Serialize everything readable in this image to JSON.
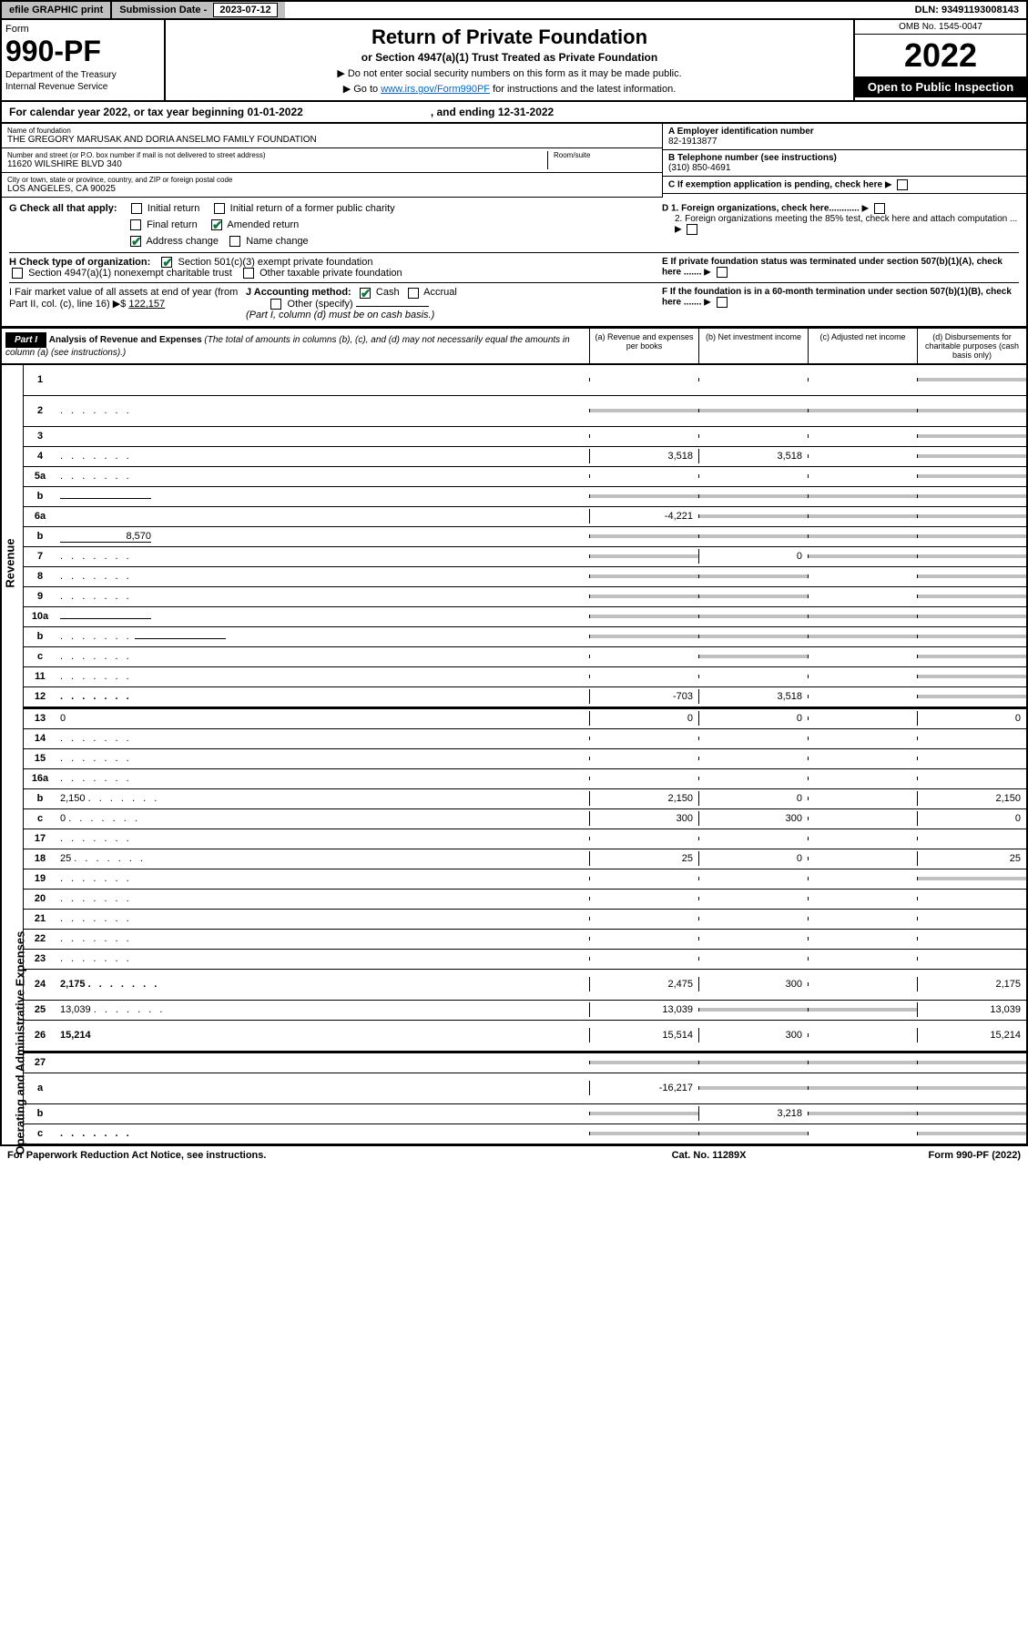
{
  "top": {
    "efile": "efile GRAPHIC print",
    "sub_label": "Submission Date -",
    "sub_date": "2023-07-12",
    "dln": "DLN: 93491193008143"
  },
  "header": {
    "form_label": "Form",
    "form_num": "990-PF",
    "dept1": "Department of the Treasury",
    "dept2": "Internal Revenue Service",
    "title": "Return of Private Foundation",
    "subtitle": "or Section 4947(a)(1) Trust Treated as Private Foundation",
    "note1": "▶ Do not enter social security numbers on this form as it may be made public.",
    "note2_pre": "▶ Go to ",
    "note2_link": "www.irs.gov/Form990PF",
    "note2_post": " for instructions and the latest information.",
    "omb": "OMB No. 1545-0047",
    "year": "2022",
    "open": "Open to Public Inspection"
  },
  "cal": {
    "text1": "For calendar year 2022, or tax year beginning 01-01-2022",
    "text2": ", and ending 12-31-2022"
  },
  "info": {
    "name_label": "Name of foundation",
    "name": "THE GREGORY MARUSAK AND DORIA ANSELMO FAMILY FOUNDATION",
    "addr_label": "Number and street (or P.O. box number if mail is not delivered to street address)",
    "addr": "11620 WILSHIRE BLVD 340",
    "room_label": "Room/suite",
    "city_label": "City or town, state or province, country, and ZIP or foreign postal code",
    "city": "LOS ANGELES, CA  90025",
    "ein_label": "A Employer identification number",
    "ein": "82-1913877",
    "phone_label": "B Telephone number (see instructions)",
    "phone": "(310) 850-4691",
    "c_label": "C If exemption application is pending, check here",
    "d1": "D 1. Foreign organizations, check here............",
    "d2": "2. Foreign organizations meeting the 85% test, check here and attach computation ...",
    "e": "E If private foundation status was terminated under section 507(b)(1)(A), check here .......",
    "f": "F If the foundation is in a 60-month termination under section 507(b)(1)(B), check here .......",
    "g_label": "G Check all that apply:",
    "g_initial": "Initial return",
    "g_initial_former": "Initial return of a former public charity",
    "g_final": "Final return",
    "g_amended": "Amended return",
    "g_addr_change": "Address change",
    "g_name_change": "Name change",
    "h_label": "H Check type of organization:",
    "h_501": "Section 501(c)(3) exempt private foundation",
    "h_4947": "Section 4947(a)(1) nonexempt charitable trust",
    "h_other": "Other taxable private foundation",
    "i_label": "I Fair market value of all assets at end of year (from Part II, col. (c), line 16) ▶$",
    "i_val": "122,157",
    "j_label": "J Accounting method:",
    "j_cash": "Cash",
    "j_accrual": "Accrual",
    "j_other": "Other (specify)",
    "j_note": "(Part I, column (d) must be on cash basis.)"
  },
  "part1": {
    "label": "Part I",
    "title": "Analysis of Revenue and Expenses",
    "title_note": "(The total of amounts in columns (b), (c), and (d) may not necessarily equal the amounts in column (a) (see instructions).)",
    "col_a": "(a) Revenue and expenses per books",
    "col_b": "(b) Net investment income",
    "col_c": "(c) Adjusted net income",
    "col_d": "(d) Disbursements for charitable purposes (cash basis only)"
  },
  "side": {
    "revenue": "Revenue",
    "expenses": "Operating and Administrative Expenses"
  },
  "rows": [
    {
      "n": "1",
      "d": "",
      "a": "",
      "b": "",
      "c": "",
      "grey_c": false,
      "grey_d": true,
      "tall": true
    },
    {
      "n": "2",
      "d": "",
      "dots": true,
      "a": "",
      "b": "",
      "c": "",
      "grey_a": true,
      "grey_b": true,
      "grey_c": true,
      "grey_d": true,
      "tall": true,
      "bold": false
    },
    {
      "n": "3",
      "d": "",
      "a": "",
      "b": "",
      "c": "",
      "grey_d": true
    },
    {
      "n": "4",
      "d": "",
      "dots": true,
      "a": "3,518",
      "b": "3,518",
      "c": "",
      "grey_d": true
    },
    {
      "n": "5a",
      "d": "",
      "dots": true,
      "a": "",
      "b": "",
      "c": "",
      "grey_d": true
    },
    {
      "n": "b",
      "d": "",
      "under": true,
      "a": "",
      "b": "",
      "c": "",
      "grey_a": true,
      "grey_b": true,
      "grey_c": true,
      "grey_d": true
    },
    {
      "n": "6a",
      "d": "",
      "a": "-4,221",
      "b": "",
      "c": "",
      "grey_b": true,
      "grey_c": true,
      "grey_d": true
    },
    {
      "n": "b",
      "d": "",
      "under": true,
      "under_val": "8,570",
      "a": "",
      "b": "",
      "c": "",
      "grey_a": true,
      "grey_b": true,
      "grey_c": true,
      "grey_d": true
    },
    {
      "n": "7",
      "d": "",
      "dots": true,
      "a": "",
      "b": "0",
      "c": "",
      "grey_a": true,
      "grey_c": true,
      "grey_d": true
    },
    {
      "n": "8",
      "d": "",
      "dots": true,
      "a": "",
      "b": "",
      "c": "",
      "grey_a": true,
      "grey_b": true,
      "grey_d": true
    },
    {
      "n": "9",
      "d": "",
      "dots": true,
      "a": "",
      "b": "",
      "c": "",
      "grey_a": true,
      "grey_b": true,
      "grey_d": true
    },
    {
      "n": "10a",
      "d": "",
      "under": true,
      "a": "",
      "b": "",
      "c": "",
      "grey_a": true,
      "grey_b": true,
      "grey_c": true,
      "grey_d": true
    },
    {
      "n": "b",
      "d": "",
      "dots": true,
      "under": true,
      "a": "",
      "b": "",
      "c": "",
      "grey_a": true,
      "grey_b": true,
      "grey_c": true,
      "grey_d": true
    },
    {
      "n": "c",
      "d": "",
      "dots": true,
      "a": "",
      "b": "",
      "c": "",
      "grey_b": true,
      "grey_d": true
    },
    {
      "n": "11",
      "d": "",
      "dots": true,
      "a": "",
      "b": "",
      "c": "",
      "grey_d": true
    },
    {
      "n": "12",
      "d": "",
      "dots": true,
      "bold": true,
      "a": "-703",
      "b": "3,518",
      "c": "",
      "grey_d": true
    }
  ],
  "exp_rows": [
    {
      "n": "13",
      "d": "0",
      "a": "0",
      "b": "0",
      "c": ""
    },
    {
      "n": "14",
      "d": "",
      "dots": true,
      "a": "",
      "b": "",
      "c": ""
    },
    {
      "n": "15",
      "d": "",
      "dots": true,
      "a": "",
      "b": "",
      "c": ""
    },
    {
      "n": "16a",
      "d": "",
      "dots": true,
      "a": "",
      "b": "",
      "c": ""
    },
    {
      "n": "b",
      "d": "2,150",
      "dots": true,
      "a": "2,150",
      "b": "0",
      "c": ""
    },
    {
      "n": "c",
      "d": "0",
      "dots": true,
      "a": "300",
      "b": "300",
      "c": ""
    },
    {
      "n": "17",
      "d": "",
      "dots": true,
      "a": "",
      "b": "",
      "c": ""
    },
    {
      "n": "18",
      "d": "25",
      "dots": true,
      "a": "25",
      "b": "0",
      "c": ""
    },
    {
      "n": "19",
      "d": "",
      "dots": true,
      "a": "",
      "b": "",
      "c": "",
      "grey_d": true
    },
    {
      "n": "20",
      "d": "",
      "dots": true,
      "a": "",
      "b": "",
      "c": ""
    },
    {
      "n": "21",
      "d": "",
      "dots": true,
      "a": "",
      "b": "",
      "c": ""
    },
    {
      "n": "22",
      "d": "",
      "dots": true,
      "a": "",
      "b": "",
      "c": ""
    },
    {
      "n": "23",
      "d": "",
      "dots": true,
      "a": "",
      "b": "",
      "c": ""
    },
    {
      "n": "24",
      "d": "2,175",
      "dots": true,
      "bold": true,
      "a": "2,475",
      "b": "300",
      "c": "",
      "tall": true
    },
    {
      "n": "25",
      "d": "13,039",
      "dots": true,
      "a": "13,039",
      "b": "",
      "c": "",
      "grey_b": true,
      "grey_c": true
    },
    {
      "n": "26",
      "d": "15,214",
      "bold": true,
      "a": "15,514",
      "b": "300",
      "c": "",
      "tall": true
    }
  ],
  "net_rows": [
    {
      "n": "27",
      "d": "",
      "a": "",
      "b": "",
      "c": "",
      "grey_a": true,
      "grey_b": true,
      "grey_c": true,
      "grey_d": true
    },
    {
      "n": "a",
      "d": "",
      "bold": true,
      "a": "-16,217",
      "b": "",
      "c": "",
      "grey_b": true,
      "grey_c": true,
      "grey_d": true,
      "tall": true
    },
    {
      "n": "b",
      "d": "",
      "bold": true,
      "a": "",
      "b": "3,218",
      "c": "",
      "grey_a": true,
      "grey_c": true,
      "grey_d": true
    },
    {
      "n": "c",
      "d": "",
      "dots": true,
      "bold": true,
      "a": "",
      "b": "",
      "c": "",
      "grey_a": true,
      "grey_b": true,
      "grey_d": true
    }
  ],
  "footer": {
    "left": "For Paperwork Reduction Act Notice, see instructions.",
    "mid": "Cat. No. 11289X",
    "right": "Form 990-PF (2022)"
  }
}
